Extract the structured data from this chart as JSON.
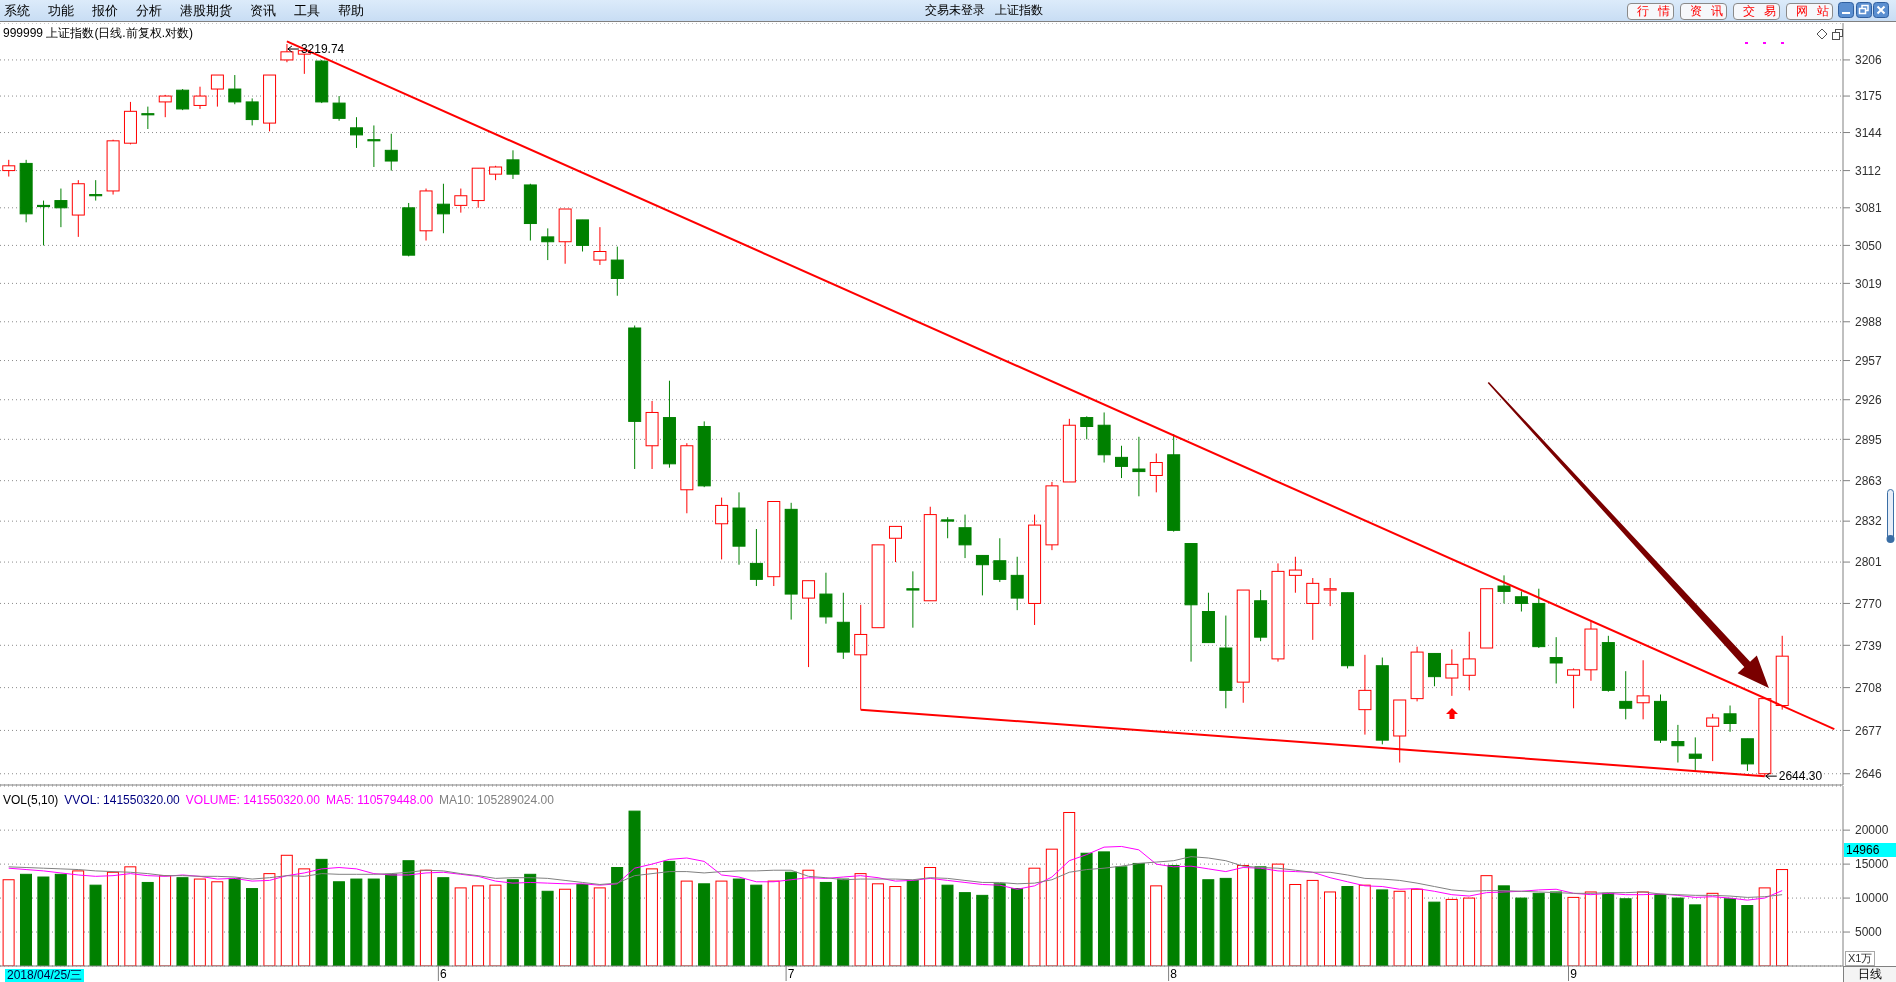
{
  "chart_data": [
    {
      "type": "candlestick",
      "title": "999999 上证指数(日线.前复权.对数)",
      "categories": [
        null,
        null,
        null,
        null,
        null,
        null,
        null,
        null,
        null,
        null,
        null,
        null,
        null,
        null,
        null,
        null,
        null,
        null,
        null,
        null,
        null,
        null,
        null,
        null,
        null,
        "6",
        null,
        null,
        null,
        null,
        null,
        null,
        null,
        null,
        null,
        null,
        null,
        null,
        null,
        null,
        null,
        null,
        null,
        null,
        null,
        "7",
        null,
        null,
        null,
        null,
        null,
        null,
        null,
        null,
        null,
        null,
        null,
        null,
        null,
        null,
        null,
        null,
        null,
        null,
        null,
        null,
        null,
        "8",
        null,
        null,
        null,
        null,
        null,
        null,
        null,
        null,
        null,
        null,
        null,
        null,
        null,
        null,
        null,
        null,
        null,
        null,
        null,
        null,
        null,
        null,
        "9",
        null,
        null,
        null,
        null,
        null,
        null,
        null,
        null,
        null,
        null,
        null,
        null,
        null,
        null,
        null
      ],
      "ohlc": [
        [
          3112,
          3121,
          3107,
          3116
        ],
        [
          3118,
          3121,
          3069,
          3076
        ],
        [
          3083,
          3087,
          3050,
          3082
        ],
        [
          3087,
          3097,
          3065,
          3081
        ],
        [
          3075,
          3104,
          3057,
          3101
        ],
        [
          3092,
          3104,
          3087,
          3091
        ],
        [
          3095,
          3138,
          3092,
          3137
        ],
        [
          3135,
          3170,
          3134,
          3162
        ],
        [
          3160,
          3166,
          3147,
          3159
        ],
        [
          3170,
          3176,
          3157,
          3175
        ],
        [
          3180,
          3181,
          3163,
          3164
        ],
        [
          3167,
          3183,
          3164,
          3175
        ],
        [
          3181,
          3193,
          3166,
          3193
        ],
        [
          3181,
          3193,
          3168,
          3170
        ],
        [
          3170,
          3173,
          3150,
          3155
        ],
        [
          3152,
          3193,
          3145,
          3193
        ],
        [
          3206,
          3219.74,
          3204,
          3213
        ],
        [
          3211,
          3215,
          3194,
          3214
        ],
        [
          3205,
          3206,
          3169,
          3170
        ],
        [
          3169,
          3175,
          3154,
          3156
        ],
        [
          3148,
          3157,
          3131,
          3142
        ],
        [
          3138,
          3150,
          3115,
          3137
        ],
        [
          3129,
          3143,
          3112,
          3120
        ],
        [
          3081,
          3085,
          3041,
          3042
        ],
        [
          3062,
          3097,
          3054,
          3095
        ],
        [
          3084,
          3101,
          3060,
          3076
        ],
        [
          3083,
          3097,
          3077,
          3091
        ],
        [
          3087,
          3114,
          3081,
          3114
        ],
        [
          3109,
          3116,
          3104,
          3115
        ],
        [
          3121,
          3129,
          3105,
          3109
        ],
        [
          3100,
          3101,
          3054,
          3068
        ],
        [
          3057,
          3064,
          3038,
          3053
        ],
        [
          3053,
          3080,
          3035,
          3080
        ],
        [
          3071,
          3071,
          3045,
          3050
        ],
        [
          3038,
          3065,
          3034,
          3045
        ],
        [
          3038,
          3049,
          3009,
          3023
        ],
        [
          2983,
          2985,
          2872,
          2909
        ],
        [
          2890,
          2925,
          2872,
          2916
        ],
        [
          2912,
          2941,
          2873,
          2876
        ],
        [
          2856,
          2892,
          2838,
          2890
        ],
        [
          2905,
          2909,
          2858,
          2859
        ],
        [
          2830,
          2850,
          2803,
          2844
        ],
        [
          2842,
          2854,
          2799,
          2813
        ],
        [
          2800,
          2826,
          2783,
          2788
        ],
        [
          2790,
          2847,
          2783,
          2847
        ],
        [
          2841,
          2846,
          2758,
          2777
        ],
        [
          2774,
          2787,
          2723,
          2787
        ],
        [
          2777,
          2793,
          2755,
          2760
        ],
        [
          2756,
          2778,
          2729,
          2734
        ],
        [
          2732,
          2769,
          2692,
          2747
        ],
        [
          2752,
          2814,
          2752,
          2814
        ],
        [
          2819,
          2828,
          2801,
          2828
        ],
        [
          2781,
          2794,
          2752,
          2780
        ],
        [
          2772,
          2843,
          2772,
          2837
        ],
        [
          2833,
          2835,
          2819,
          2832
        ],
        [
          2827,
          2837,
          2804,
          2814
        ],
        [
          2806,
          2806,
          2776,
          2799
        ],
        [
          2802,
          2819,
          2786,
          2788
        ],
        [
          2791,
          2805,
          2765,
          2774
        ],
        [
          2770,
          2837,
          2754,
          2829
        ],
        [
          2814,
          2862,
          2810,
          2859
        ],
        [
          2862,
          2911,
          2862,
          2906
        ],
        [
          2912,
          2913,
          2895,
          2905
        ],
        [
          2906,
          2916,
          2877,
          2883
        ],
        [
          2881,
          2890,
          2865,
          2874
        ],
        [
          2872,
          2897,
          2851,
          2870
        ],
        [
          2867,
          2884,
          2854,
          2877
        ],
        [
          2883,
          2899,
          2824,
          2825
        ],
        [
          2815,
          2815,
          2727,
          2769
        ],
        [
          2764,
          2778,
          2741,
          2741
        ],
        [
          2737,
          2761,
          2693,
          2706
        ],
        [
          2712,
          2780,
          2697,
          2780
        ],
        [
          2772,
          2780,
          2742,
          2745
        ],
        [
          2729,
          2800,
          2727,
          2794
        ],
        [
          2791,
          2805,
          2778,
          2795
        ],
        [
          2770,
          2789,
          2743,
          2785
        ],
        [
          2780,
          2789,
          2768,
          2781
        ],
        [
          2778,
          2778,
          2722,
          2724
        ],
        [
          2692,
          2732,
          2674,
          2706
        ],
        [
          2724,
          2730,
          2667,
          2670
        ],
        [
          2673,
          2699,
          2654,
          2699
        ],
        [
          2700,
          2738,
          2698,
          2734
        ],
        [
          2733,
          2733,
          2709,
          2716
        ],
        [
          2715,
          2736,
          2702,
          2725
        ],
        [
          2717,
          2749,
          2706,
          2729
        ],
        [
          2737,
          2781,
          2737,
          2781
        ],
        [
          2783,
          2791,
          2770,
          2779
        ],
        [
          2775,
          2779,
          2764,
          2770
        ],
        [
          2770,
          2781,
          2737,
          2738
        ],
        [
          2730,
          2745,
          2711,
          2726
        ],
        [
          2717,
          2722,
          2693,
          2721
        ],
        [
          2721,
          2757,
          2713,
          2751
        ],
        [
          2741,
          2746,
          2705,
          2706
        ],
        [
          2698,
          2720,
          2685,
          2693
        ],
        [
          2697,
          2728,
          2685,
          2702
        ],
        [
          2698,
          2703,
          2668,
          2670
        ],
        [
          2669,
          2681,
          2654,
          2666
        ],
        [
          2660,
          2672,
          2648,
          2657
        ],
        [
          2680,
          2689,
          2655,
          2686
        ],
        [
          2689,
          2695,
          2676,
          2682
        ],
        [
          2671,
          2671,
          2648,
          2653
        ],
        [
          2646,
          2700,
          2644.3,
          2700
        ],
        [
          2695,
          2746,
          2692,
          2731
        ],
        null,
        null,
        null
      ],
      "colors": [
        "#ff0000",
        "#008000",
        "#008000",
        "#008000",
        "#ff0000",
        "#008000",
        "#ff0000",
        "#ff0000",
        "#008000",
        "#ff0000",
        "#008000",
        "#ff0000",
        "#ff0000",
        "#008000",
        "#008000",
        "#ff0000",
        "#ff0000",
        "#ff0000",
        "#008000",
        "#008000",
        "#008000",
        "#008000",
        "#008000",
        "#008000",
        "#ff0000",
        "#008000",
        "#ff0000",
        "#ff0000",
        "#ff0000",
        "#008000",
        "#008000",
        "#008000",
        "#ff0000",
        "#008000",
        "#ff0000",
        "#008000",
        "#008000",
        "#ff0000",
        "#008000",
        "#ff0000",
        "#008000",
        "#ff0000",
        "#008000",
        "#008000",
        "#ff0000",
        "#008000",
        "#ff0000",
        "#008000",
        "#008000",
        "#ff0000",
        "#ff0000",
        "#ff0000",
        "#008000",
        "#ff0000",
        "#008000",
        "#008000",
        "#008000",
        "#008000",
        "#008000",
        "#ff0000",
        "#ff0000",
        "#ff0000",
        "#008000",
        "#008000",
        "#008000",
        "#008000",
        "#ff0000",
        "#008000",
        "#008000",
        "#008000",
        "#008000",
        "#ff0000",
        "#008000",
        "#ff0000",
        "#ff0000",
        "#ff0000",
        "#ff0000",
        "#008000",
        "#ff0000",
        "#008000",
        "#ff0000",
        "#ff0000",
        "#008000",
        "#ff0000",
        "#ff0000",
        "#ff0000",
        "#008000",
        "#008000",
        "#008000",
        "#008000",
        "#ff0000",
        "#ff0000",
        "#008000",
        "#008000",
        "#ff0000",
        "#008000",
        "#008000",
        "#008000",
        "#ff0000",
        "#008000",
        "#008000",
        "#ff0000",
        "#ff0000",
        null,
        null,
        null
      ],
      "series": [
        {
          "type": "line",
          "color": "#ff0000",
          "values": [
            null,
            null,
            null,
            null,
            null,
            null,
            null,
            null,
            null,
            null,
            null,
            null,
            null,
            null,
            null,
            null,
            3222,
            null,
            null,
            null,
            null,
            null,
            null,
            null,
            null,
            null,
            null,
            null,
            null,
            null,
            null,
            null,
            null,
            null,
            null,
            null,
            null,
            null,
            null,
            null,
            null,
            null,
            null,
            null,
            null,
            null,
            null,
            null,
            null,
            null,
            null,
            null,
            null,
            null,
            null,
            null,
            null,
            null,
            null,
            null,
            null,
            null,
            null,
            null,
            null,
            null,
            null,
            null,
            null,
            null,
            null,
            null,
            null,
            null,
            null,
            null,
            null,
            null,
            null,
            null,
            null,
            null,
            null,
            null,
            null,
            null,
            null,
            null,
            null,
            null,
            null,
            null,
            null,
            null,
            null,
            null,
            null,
            null,
            null,
            null,
            null,
            null,
            null,
            null,
            null,
            2678
          ]
        },
        {
          "type": "line",
          "color": "#ff0000",
          "values": [
            null,
            null,
            null,
            null,
            null,
            null,
            null,
            null,
            null,
            null,
            null,
            null,
            null,
            null,
            null,
            null,
            null,
            null,
            null,
            null,
            null,
            null,
            null,
            null,
            null,
            null,
            null,
            null,
            null,
            null,
            null,
            null,
            null,
            null,
            null,
            null,
            null,
            null,
            null,
            null,
            null,
            null,
            null,
            null,
            null,
            null,
            null,
            null,
            null,
            2692,
            null,
            null,
            null,
            null,
            null,
            null,
            null,
            null,
            null,
            null,
            null,
            null,
            null,
            null,
            null,
            null,
            null,
            null,
            null,
            null,
            null,
            null,
            null,
            null,
            null,
            null,
            null,
            null,
            null,
            null,
            null,
            null,
            null,
            null,
            null,
            null,
            null,
            null,
            null,
            null,
            null,
            null,
            null,
            null,
            null,
            null,
            null,
            null,
            null,
            null,
            null,
            2644.3,
            null,
            null,
            null,
            null
          ]
        }
      ],
      "log": "y",
      "ylim": [
        2638,
        3238
      ],
      "yticks": [
        2646,
        2677,
        2708,
        2739,
        2770,
        2801,
        2832,
        2863,
        2895,
        2926,
        2957,
        2988,
        3019,
        3050,
        3081,
        3112,
        3144,
        3175,
        3206
      ],
      "grid": "y",
      "tick_labels": "y",
      "annotations": [
        "系统",
        "功能",
        "报价",
        "分析",
        "港股期货",
        "资讯",
        "工具",
        "帮助",
        "交易未登录",
        "上证指数",
        "行情",
        "资讯",
        "交易",
        "网站",
        "3219.74",
        "2644.30"
      ]
    },
    {
      "type": "bar",
      "title": "VOL(5,10)",
      "ylabel": "X1万",
      "categories": [
        null,
        null,
        null,
        null,
        null,
        null,
        null,
        null,
        null,
        null,
        null,
        null,
        null,
        null,
        null,
        null,
        null,
        null,
        null,
        null,
        null,
        null,
        null,
        null,
        null,
        "6",
        null,
        null,
        null,
        null,
        null,
        null,
        null,
        null,
        null,
        null,
        null,
        null,
        null,
        null,
        null,
        null,
        null,
        null,
        null,
        "7",
        null,
        null,
        null,
        null,
        null,
        null,
        null,
        null,
        null,
        null,
        null,
        null,
        null,
        null,
        null,
        null,
        null,
        null,
        null,
        null,
        null,
        "8",
        null,
        null,
        null,
        null,
        null,
        null,
        null,
        null,
        null,
        null,
        null,
        null,
        null,
        null,
        null,
        null,
        null,
        null,
        null,
        null,
        null,
        null,
        "9",
        null,
        null,
        null,
        null,
        null,
        null,
        null,
        null,
        null,
        null,
        null,
        null,
        null,
        null,
        null
      ],
      "series": [
        {
          "colors": [
            "#ff0000",
            "#008000",
            "#008000",
            "#008000",
            "#ff0000",
            "#008000",
            "#ff0000",
            "#ff0000",
            "#008000",
            "#ff0000",
            "#008000",
            "#ff0000",
            "#ff0000",
            "#008000",
            "#008000",
            "#ff0000",
            "#ff0000",
            "#ff0000",
            "#008000",
            "#008000",
            "#008000",
            "#008000",
            "#008000",
            "#008000",
            "#ff0000",
            "#008000",
            "#ff0000",
            "#ff0000",
            "#ff0000",
            "#008000",
            "#008000",
            "#008000",
            "#ff0000",
            "#008000",
            "#ff0000",
            "#008000",
            "#008000",
            "#ff0000",
            "#008000",
            "#ff0000",
            "#008000",
            "#ff0000",
            "#008000",
            "#008000",
            "#ff0000",
            "#008000",
            "#ff0000",
            "#008000",
            "#008000",
            "#ff0000",
            "#ff0000",
            "#ff0000",
            "#008000",
            "#ff0000",
            "#008000",
            "#008000",
            "#008000",
            "#008000",
            "#008000",
            "#ff0000",
            "#ff0000",
            "#ff0000",
            "#008000",
            "#008000",
            "#008000",
            "#008000",
            "#ff0000",
            "#008000",
            "#008000",
            "#008000",
            "#008000",
            "#ff0000",
            "#008000",
            "#ff0000",
            "#ff0000",
            "#ff0000",
            "#ff0000",
            "#008000",
            "#ff0000",
            "#008000",
            "#ff0000",
            "#ff0000",
            "#008000",
            "#ff0000",
            "#ff0000",
            "#ff0000",
            "#008000",
            "#008000",
            "#008000",
            "#008000",
            "#ff0000",
            "#ff0000",
            "#008000",
            "#008000",
            "#ff0000",
            "#008000",
            "#008000",
            "#008000",
            "#ff0000",
            "#008000",
            "#008000",
            "#ff0000",
            "#ff0000",
            null,
            null,
            null
          ],
          "values": [
            12700,
            13500,
            13100,
            13500,
            14000,
            11900,
            13800,
            14600,
            12300,
            13300,
            13000,
            12800,
            12400,
            12900,
            11400,
            13600,
            16300,
            14300,
            15700,
            12400,
            12800,
            12800,
            13500,
            15500,
            14100,
            13000,
            11500,
            11800,
            11900,
            12700,
            13500,
            11000,
            11300,
            12000,
            11500,
            14500,
            22800,
            14300,
            15400,
            12500,
            12100,
            12500,
            12800,
            11900,
            12500,
            13800,
            14100,
            12300,
            12800,
            13600,
            12100,
            11700,
            12600,
            14500,
            11900,
            10800,
            10400,
            12100,
            11400,
            14400,
            17200,
            22600,
            16600,
            16800,
            14600,
            15100,
            11800,
            14800,
            17200,
            12700,
            12900,
            14800,
            14600,
            15000,
            12000,
            12600,
            10900,
            11700,
            11900,
            11200,
            11000,
            11300,
            9400,
            9800,
            10000,
            13300,
            11800,
            10000,
            10700,
            10900,
            10100,
            10900,
            10700,
            9900,
            10900,
            10500,
            10000,
            9000,
            10700,
            9900,
            8900,
            11500,
            14200,
            null,
            null,
            null
          ]
        },
        {
          "type": "line",
          "name": "MA5: 110579448.00",
          "color": "#ff00ff",
          "values": [
            14400,
            14200,
            14000,
            13700,
            13400,
            13200,
            13300,
            13600,
            13300,
            13200,
            13400,
            13200,
            12800,
            12900,
            12500,
            12600,
            13300,
            13700,
            14300,
            14500,
            14300,
            13600,
            13400,
            13400,
            13700,
            13800,
            13500,
            13200,
            12500,
            12200,
            12300,
            12200,
            12100,
            12100,
            11900,
            12100,
            14400,
            15000,
            15700,
            15900,
            15400,
            13400,
            13100,
            12400,
            12400,
            12700,
            13000,
            12900,
            13100,
            13300,
            13000,
            12500,
            12600,
            12900,
            12600,
            12300,
            12000,
            11900,
            11300,
            11800,
            13100,
            15500,
            16400,
            17500,
            17600,
            17100,
            15000,
            14600,
            14700,
            14300,
            13900,
            14500,
            14400,
            14000,
            13900,
            13800,
            13000,
            12400,
            11800,
            11700,
            11300,
            11400,
            11000,
            10500,
            10300,
            10800,
            10900,
            11000,
            11200,
            11300,
            10700,
            10500,
            10700,
            10500,
            10500,
            10600,
            10400,
            10100,
            10200,
            10000,
            9700,
            10000,
            11100,
            null,
            null,
            null
          ]
        },
        {
          "type": "line",
          "name": "MA10: 105289024.00",
          "color": "#808080",
          "values": [
            14600,
            14500,
            14400,
            14300,
            14200,
            14000,
            13900,
            13800,
            13600,
            13300,
            13300,
            13200,
            13200,
            13100,
            12800,
            13000,
            13300,
            13200,
            13600,
            13500,
            13500,
            13500,
            13600,
            13800,
            14100,
            14000,
            13600,
            13300,
            12900,
            13000,
            13000,
            12900,
            12600,
            12300,
            12000,
            12200,
            13300,
            13600,
            13900,
            13900,
            13700,
            13900,
            14000,
            14000,
            14100,
            14100,
            13200,
            13000,
            12700,
            12800,
            12800,
            12800,
            12700,
            13000,
            12900,
            12600,
            12300,
            12300,
            12100,
            12200,
            12700,
            13800,
            14200,
            14400,
            14700,
            15100,
            15300,
            15500,
            16100,
            15900,
            15500,
            14700,
            14500,
            14400,
            14100,
            13800,
            13800,
            13400,
            12900,
            12800,
            12600,
            12200,
            11700,
            11200,
            11000,
            11100,
            11100,
            11000,
            10900,
            10800,
            10700,
            10700,
            10800,
            10800,
            10900,
            10600,
            10500,
            10400,
            10400,
            10300,
            10100,
            10200,
            10500,
            null,
            null,
            null
          ]
        }
      ],
      "ylim": [
        0,
        26500
      ],
      "yticks": [
        5000,
        10000,
        15000,
        20000
      ],
      "grid": "y",
      "legend": "top left",
      "annotations": [
        "VVOL: 141550320.00",
        "VOLUME: 141550320.00",
        "14966",
        "2018/04/25/三",
        "日线"
      ]
    }
  ]
}
